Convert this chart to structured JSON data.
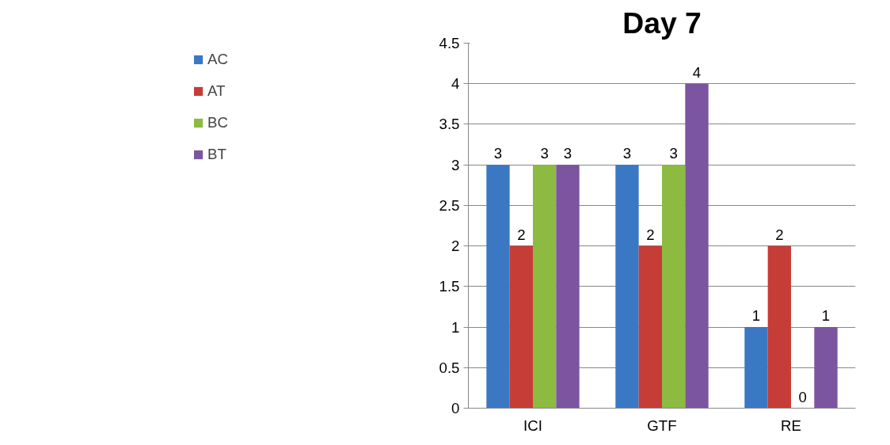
{
  "chart_data": {
    "type": "bar",
    "title": "Day 7",
    "categories": [
      "ICI",
      "GTF",
      "RE"
    ],
    "series": [
      {
        "name": "AC",
        "color": "#3a78c4",
        "values": [
          3,
          3,
          1
        ]
      },
      {
        "name": "AT",
        "color": "#c63c37",
        "values": [
          2,
          2,
          2
        ]
      },
      {
        "name": "BC",
        "color": "#8dba41",
        "values": [
          3,
          3,
          0
        ]
      },
      {
        "name": "BT",
        "color": "#7b55a0",
        "values": [
          3,
          4,
          1
        ]
      }
    ],
    "ylim": [
      0,
      4.5
    ],
    "yticks": [
      0,
      0.5,
      1,
      1.5,
      2,
      2.5,
      3,
      3.5,
      4,
      4.5
    ],
    "grid": "y",
    "legend": "left",
    "data_labels": true
  }
}
